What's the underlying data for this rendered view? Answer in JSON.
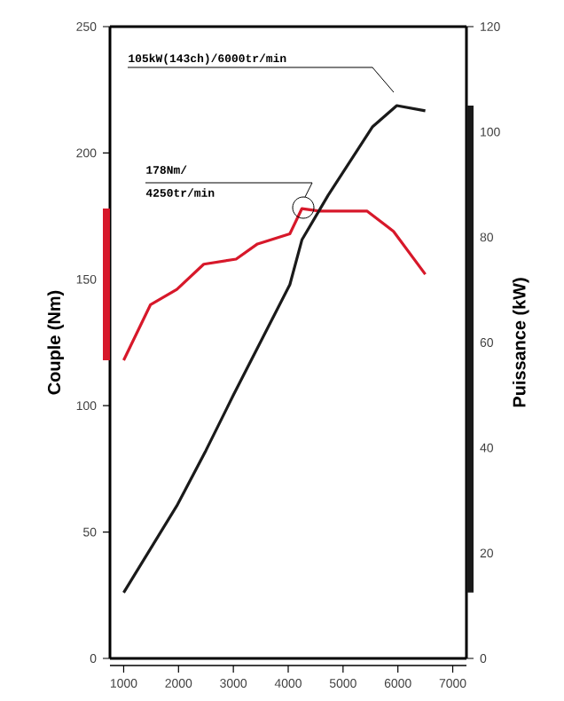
{
  "chart_data": {
    "type": "line",
    "xlabel": null,
    "ylabel": "Couple (Nm)",
    "y2label": "Puissance (kW)",
    "xlim": [
      750,
      7250
    ],
    "xticks": [
      1000,
      2000,
      3000,
      4000,
      5000,
      6000,
      7000
    ],
    "ylim": [
      0,
      250
    ],
    "yticks": [
      0,
      50,
      100,
      150,
      200,
      250
    ],
    "y2lim": [
      0,
      120
    ],
    "y2ticks": [
      0,
      20,
      40,
      60,
      80,
      100,
      120
    ],
    "grid": false,
    "line_style": "solid",
    "marker": "none",
    "series": [
      {
        "color": "#d7182a",
        "x": [
          1000,
          1490,
          1970,
          2460,
          3050,
          3440,
          4030,
          4250,
          4570,
          5440,
          5920,
          6500
        ],
        "values": [
          118,
          140,
          146,
          156,
          158,
          164,
          168,
          178,
          177,
          177,
          169,
          152
        ]
      },
      {
        "color": "#1a1a1a",
        "axis": "y2",
        "x": [
          1000,
          1970,
          2500,
          3000,
          3540,
          4030,
          4250,
          4730,
          5540,
          5980,
          6500
        ],
        "values": [
          12.5,
          29,
          39.5,
          50,
          61,
          71,
          79.5,
          88,
          101,
          105,
          104
        ]
      }
    ],
    "annotations": [
      "105kW(143ch)/6000tr/min",
      "178Nm/ 4250tr/min"
    ]
  }
}
